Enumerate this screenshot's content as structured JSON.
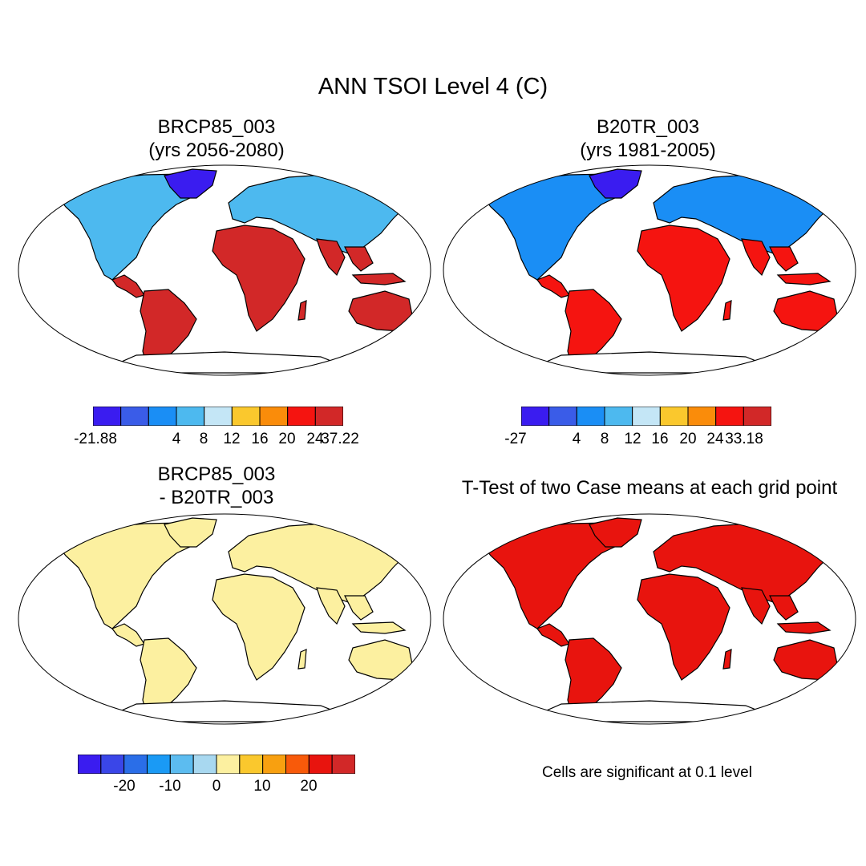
{
  "figure": {
    "title": "ANN TSOI Level 4 (C)"
  },
  "panels": [
    {
      "id": "case",
      "title_line1": "BRCP85_003",
      "title_line2": "(yrs 2056-2080)",
      "colorbar": {
        "colors": [
          "#3a1cf0",
          "#3a5ce8",
          "#1a8ef5",
          "#4db9ef",
          "#c4e6f6",
          "#fac82d",
          "#fa8c0a",
          "#f51410",
          "#d22828"
        ],
        "labels": [
          "-21.88",
          "4",
          "8",
          "12",
          "16",
          "20",
          "24",
          "37.22"
        ]
      }
    },
    {
      "id": "control",
      "title_line1": "B20TR_003",
      "title_line2": "(yrs 1981-2005)",
      "colorbar": {
        "colors": [
          "#3a1cf0",
          "#3a5ce8",
          "#1a8ef5",
          "#4db9ef",
          "#c4e6f6",
          "#fac82d",
          "#fa8c0a",
          "#f51410",
          "#d22828"
        ],
        "labels": [
          "-27",
          "4",
          "8",
          "12",
          "16",
          "20",
          "24",
          "33.18"
        ]
      }
    },
    {
      "id": "difference",
      "title_line1": "BRCP85_003",
      "title_line2": "- B20TR_003",
      "colorbar": {
        "colors": [
          "#3a1cf0",
          "#3a46e8",
          "#2a6ee8",
          "#1a9af5",
          "#5cbcf0",
          "#a8d8f0",
          "#fcf0a0",
          "#fac82d",
          "#f8a010",
          "#f85a0a",
          "#e8140e",
          "#d22828"
        ],
        "labels": [
          "-20",
          "-10",
          "0",
          "10",
          "20"
        ]
      }
    },
    {
      "id": "ttest",
      "title_line1": "T-Test of two Case means at each grid point",
      "note": "Cells are significant at 0.1 level"
    }
  ],
  "colors": {
    "land_difference": "#fcf0a0",
    "land_significant": "#e8140e",
    "coastline": "#000000"
  }
}
